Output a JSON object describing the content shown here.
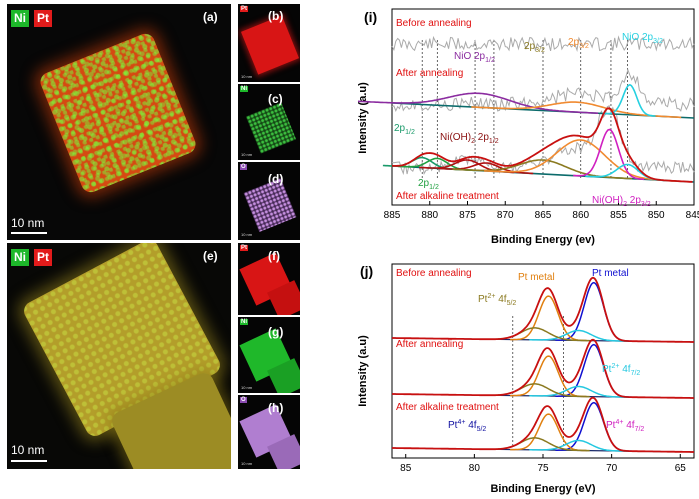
{
  "left": {
    "legend": {
      "ni": "Ni",
      "pt": "Pt"
    },
    "panels": {
      "a": "(a)",
      "b": "(b)",
      "c": "(c)",
      "d": "(d)",
      "e": "(e)",
      "f": "(f)",
      "g": "(g)",
      "h": "(h)"
    },
    "scale_big": "10 nm",
    "tile_labels": {
      "pt": "Pt",
      "ni": "Ni",
      "o": "O"
    },
    "tile_scale": "10 nm",
    "colors": {
      "pt": "#e21b1b",
      "ni": "#1db82a",
      "o": "#b982d6"
    }
  },
  "chart_data": [
    {
      "type": "line",
      "panel": "(i)",
      "xlabel": "Binding Energy (ev)",
      "ylabel": "Intensity (a.u)",
      "xlim": [
        885,
        845
      ],
      "x_ticks": [
        885,
        880,
        875,
        870,
        865,
        860,
        855,
        850,
        845
      ],
      "conditions": [
        "Before annealing",
        "After annealing",
        "After alkaline treatment"
      ],
      "annotations": {
        "nio_2p12": "NiO 2p",
        "nio_2p12_sub": "1/2",
        "p32_a": "2p",
        "p32_a_sub": "3/2",
        "p32_b": "2p",
        "p32_b_sub": "3/2",
        "nio_2p32": "NiO 2p",
        "nio_2p32_sub": "3/2",
        "p12_left": "2p",
        "p12_left_sub": "1/2",
        "nioh_2p12": "Ni(OH)",
        "nioh_2p12_sub1": "2",
        "nioh_2p12_mid": " 2p",
        "nioh_2p12_sub2": "1/2",
        "p12_low": "2p",
        "p12_low_sub": "1/2",
        "nioh_2p32": "Ni(OH)",
        "nioh_2p32_sub1": "2",
        "nioh_2p32_mid": " 2p",
        "nioh_2p32_sub2": "3/2"
      },
      "series": [
        {
          "condition": "After annealing",
          "peaks": [
            {
              "center": 873.5,
              "color": "#8b2ca0"
            },
            {
              "center": 860.5,
              "color": "#f08a30"
            },
            {
              "center": 853.5,
              "color": "#25d0e0"
            }
          ]
        },
        {
          "condition": "After alkaline treatment",
          "peaks": [
            {
              "center": 881.0,
              "color": "#1a9a6a"
            },
            {
              "center": 879.0,
              "color": "#20a040"
            },
            {
              "center": 875.0,
              "color": "#b01010"
            },
            {
              "center": 872.5,
              "color": "#b01010"
            },
            {
              "center": 865.0,
              "color": "#8b7a20"
            },
            {
              "center": 860.0,
              "color": "#f08a30"
            },
            {
              "center": 856.2,
              "color": "#d020c0"
            },
            {
              "center": 853.8,
              "color": "#25d0e0"
            }
          ]
        }
      ]
    },
    {
      "type": "line",
      "panel": "(j)",
      "xlabel": "Binding Energy (eV)",
      "ylabel": "Intensity (a.u)",
      "xlim": [
        86,
        64
      ],
      "x_ticks": [
        85,
        80,
        75,
        70,
        65
      ],
      "conditions": [
        "Before annealing",
        "After annealing",
        "After alkaline treatment"
      ],
      "annotations": {
        "pt_metal_left": "Pt metal",
        "pt_metal_right": "Pt metal",
        "pt2_45_base": "Pt",
        "pt2_45_sup": "2+",
        "pt2_45_rest": " 4f",
        "pt2_45_sub": "5/2",
        "pt2_47_base": "Pt",
        "pt2_47_sup": "2+",
        "pt2_47_rest": " 4f",
        "pt2_47_sub": "7/2",
        "pt4_45_base": "Pt",
        "pt4_45_sup": "4+",
        "pt4_45_rest": " 4f",
        "pt4_45_sub": "5/2",
        "pt4_47_base": "Pt",
        "pt4_47_sup": "4+",
        "pt4_47_rest": " 4f",
        "pt4_47_sub": "7/2"
      },
      "peaks": [
        {
          "name": "Pt metal 4f7/2",
          "center": 71.3,
          "color": "#1010d0"
        },
        {
          "name": "Pt metal 4f5/2",
          "center": 74.6,
          "color": "#e08010"
        },
        {
          "name": "Pt2+ 4f7/2",
          "center": 72.4,
          "color": "#25c8e0"
        },
        {
          "name": "Pt2+ 4f5/2",
          "center": 75.6,
          "color": "#8b7a20"
        }
      ]
    }
  ]
}
